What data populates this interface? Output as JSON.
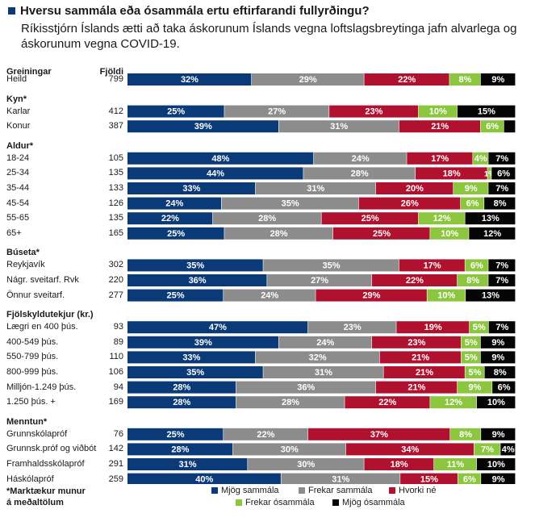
{
  "title": "Hversu sammála eða ósammála ertu eftirfarandi fullyrðingu?",
  "subtitle": "Ríkisstjórn Íslands ætti að taka áskorunum Íslands vegna loftslagsbreytinga jafn alvarlega og áskorunum vegna COVID-19.",
  "col_head_groups": "Greiningar",
  "col_head_n": "Fjöldi",
  "footnote_line1": "*Marktækur munur",
  "footnote_line2": "á meðaltölum",
  "colors": {
    "Mjög sammála": "#0b3a78",
    "Frekar sammála": "#8c8c8c",
    "Hvorki né": "#b0112e",
    "Frekar ósammála": "#8cc63f",
    "Mjög ósammála": "#050505"
  },
  "legend": [
    "Mjög sammála",
    "Frekar sammála",
    "Hvorki né",
    "Frekar ósammála",
    "Mjög ósammála"
  ],
  "chart_data": {
    "type": "bar",
    "stacked": true,
    "orientation": "horizontal",
    "unit": "%",
    "series_names": [
      "Mjög sammála",
      "Frekar sammála",
      "Hvorki né",
      "Frekar ósammála",
      "Mjög ósammála"
    ],
    "groups": [
      {
        "title": "",
        "rows": [
          {
            "label": "Heild",
            "n": "799",
            "values": [
              32,
              29,
              22,
              8,
              9
            ]
          }
        ]
      },
      {
        "title": "Kyn*",
        "rows": [
          {
            "label": "Karlar",
            "n": "412",
            "values": [
              25,
              27,
              23,
              10,
              15
            ]
          },
          {
            "label": "Konur",
            "n": "387",
            "values": [
              39,
              31,
              21,
              6,
              3
            ]
          }
        ]
      },
      {
        "title": "Aldur*",
        "rows": [
          {
            "label": "18-24",
            "n": "105",
            "values": [
              48,
              24,
              17,
              4,
              7
            ]
          },
          {
            "label": "25-34",
            "n": "135",
            "values": [
              44,
              28,
              18,
              1,
              6
            ]
          },
          {
            "label": "35-44",
            "n": "133",
            "values": [
              33,
              31,
              20,
              9,
              7
            ]
          },
          {
            "label": "45-54",
            "n": "126",
            "values": [
              24,
              35,
              26,
              6,
              8
            ]
          },
          {
            "label": "55-65",
            "n": "135",
            "values": [
              22,
              28,
              25,
              12,
              13
            ]
          },
          {
            "label": "65+",
            "n": "165",
            "values": [
              25,
              28,
              25,
              10,
              12
            ]
          }
        ]
      },
      {
        "title": "Búseta*",
        "rows": [
          {
            "label": "Reykjavík",
            "n": "302",
            "values": [
              35,
              35,
              17,
              6,
              7
            ]
          },
          {
            "label": "Nágr. sveitarf. Rvk",
            "n": "220",
            "values": [
              36,
              27,
              22,
              8,
              7
            ]
          },
          {
            "label": "Önnur sveitarf.",
            "n": "277",
            "values": [
              25,
              24,
              29,
              10,
              13
            ]
          }
        ]
      },
      {
        "title": "Fjölskyldutekjur (kr.)",
        "rows": [
          {
            "label": "Lægri en 400 þús.",
            "n": "93",
            "values": [
              47,
              23,
              19,
              5,
              7
            ]
          },
          {
            "label": "400-549 þús.",
            "n": "89",
            "values": [
              39,
              24,
              23,
              5,
              9
            ]
          },
          {
            "label": "550-799 þús.",
            "n": "110",
            "values": [
              33,
              32,
              21,
              5,
              9
            ]
          },
          {
            "label": "800-999 þús.",
            "n": "106",
            "values": [
              35,
              31,
              21,
              5,
              8
            ]
          },
          {
            "label": "Milljón-1.249 þús.",
            "n": "94",
            "values": [
              28,
              36,
              21,
              9,
              6
            ]
          },
          {
            "label": "1.250 þús. +",
            "n": "169",
            "values": [
              28,
              28,
              22,
              12,
              10
            ]
          }
        ]
      },
      {
        "title": "Menntun*",
        "rows": [
          {
            "label": "Grunnskólapróf",
            "n": "76",
            "values": [
              25,
              22,
              37,
              8,
              9
            ]
          },
          {
            "label": "Grunnsk.próf og viðbót",
            "n": "142",
            "values": [
              28,
              30,
              34,
              7,
              4
            ]
          },
          {
            "label": "Framhaldsskólapróf",
            "n": "291",
            "values": [
              31,
              30,
              18,
              11,
              10
            ]
          },
          {
            "label": "Háskólapróf",
            "n": "259",
            "values": [
              40,
              31,
              15,
              6,
              9
            ]
          }
        ]
      }
    ]
  }
}
